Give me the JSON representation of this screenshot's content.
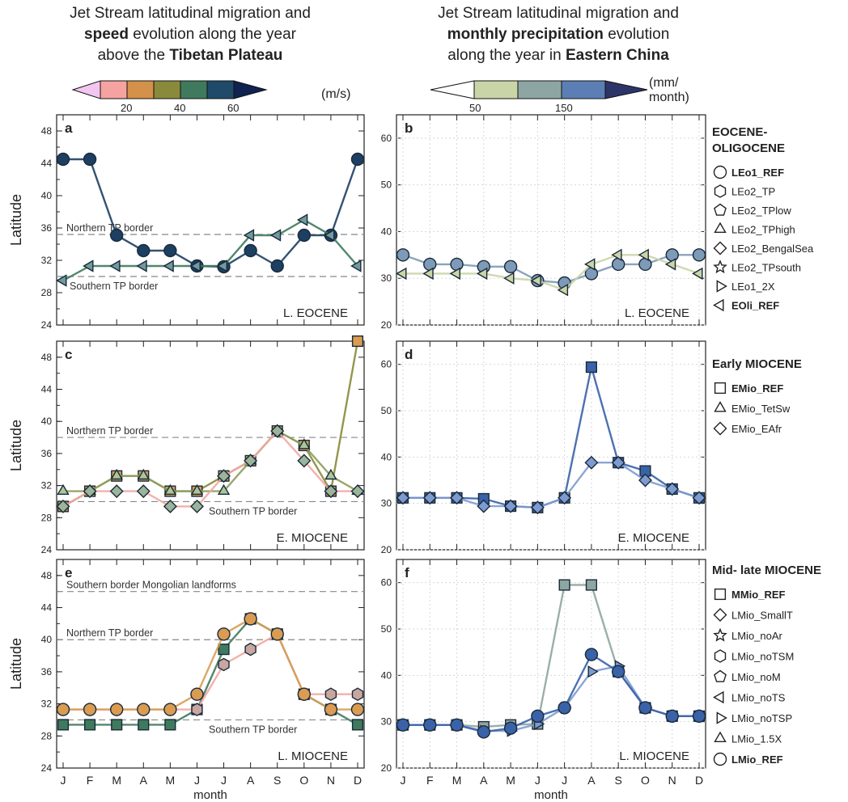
{
  "header_left": {
    "line1": "Jet Stream latitudinal migration and",
    "line2_bold": "speed",
    "line2_rest": " evolution along the year",
    "line3_pre": "above the ",
    "line3_bold": "Tibetan Plateau"
  },
  "header_right": {
    "line1": "Jet Stream latitudinal migration and",
    "line2_bold": "monthly precipitation",
    "line2_rest": " evolution",
    "line3_pre": "along the year in ",
    "line3_bold": "Eastern China"
  },
  "colorbar_speed": {
    "ticks": [
      "20",
      "40",
      "60"
    ],
    "unit": "(m/s)",
    "colors": [
      "#f3c6ef",
      "#f5a3a0",
      "#d4914a",
      "#8a8a3c",
      "#3f7a5e",
      "#1f4a6a",
      "#0f2250"
    ]
  },
  "colorbar_precip": {
    "ticks": [
      "50",
      "150"
    ],
    "unit_line1": "(mm/",
    "unit_line2": "month)",
    "colors": [
      "#ffffff",
      "#c9d5a6",
      "#8ea6a3",
      "#5b7fb4",
      "#2d3468"
    ]
  },
  "axes": {
    "xlabel": "month",
    "ylabel": "Latitude",
    "months": [
      "J",
      "F",
      "M",
      "A",
      "M",
      "J",
      "J",
      "A",
      "S",
      "O",
      "N",
      "D"
    ],
    "left_yticks": [
      "24",
      "28",
      "32",
      "36",
      "40",
      "44",
      "48"
    ],
    "right_yticks": [
      "20",
      "30",
      "40",
      "50",
      "60"
    ]
  },
  "colors": {
    "blue": "#3a62a8",
    "light_blue": "#7d9bd0",
    "green": "#8c9f5c",
    "olive": "#8a8a3c",
    "orange": "#d99c52",
    "pink": "#f2a7a3",
    "teal": "#3f7a5e",
    "navy": "#1c3f62",
    "gray": "#9a9a9a"
  },
  "chart_data": [
    {
      "type": "line",
      "panel": "a",
      "panel_label": "a",
      "era": "L. EOCENE",
      "ylim": [
        24,
        50
      ],
      "hlines": [
        {
          "y": 35.2,
          "label": "Northern TP border"
        },
        {
          "y": 30.0,
          "label": "Southern TP border"
        }
      ],
      "series": [
        {
          "name": "LEo1_REF",
          "marker": "circle",
          "values": [
            44.5,
            44.5,
            35.1,
            33.2,
            33.2,
            31.3,
            31.2,
            33.2,
            31.3,
            35.1,
            35.1,
            44.5
          ]
        },
        {
          "name": "EOli_REF",
          "marker": "tri-left",
          "values": [
            29.5,
            31.3,
            31.3,
            31.3,
            31.3,
            31.3,
            31.3,
            35.1,
            35.1,
            37.0,
            35.1,
            31.3
          ]
        }
      ]
    },
    {
      "type": "line",
      "panel": "b",
      "panel_label": "b",
      "era": "L. EOCENE",
      "ylim": [
        20,
        65
      ],
      "series": [
        {
          "name": "LEo1_REF",
          "marker": "circle",
          "values": [
            35,
            33,
            33,
            32.5,
            32.5,
            29.5,
            29,
            31,
            33,
            33,
            35,
            35
          ]
        },
        {
          "name": "EOli_REF",
          "marker": "tri-left",
          "values": [
            31,
            31,
            31,
            31,
            30,
            29.5,
            27.5,
            33,
            35,
            35,
            33,
            31
          ]
        }
      ]
    },
    {
      "type": "line",
      "panel": "c",
      "panel_label": "c",
      "era": "E. MIOCENE",
      "ylim": [
        24,
        50
      ],
      "hlines": [
        {
          "y": 38.0,
          "label": "Northern TP border"
        },
        {
          "y": 30.0,
          "label": "Southern TP border"
        }
      ],
      "series": [
        {
          "name": "EMio_REF",
          "marker": "square",
          "values": [
            29.4,
            31.3,
            33.2,
            33.2,
            31.3,
            31.3,
            33.2,
            35.1,
            38.8,
            37.0,
            31.3,
            51.0
          ]
        },
        {
          "name": "EMio_TetSw",
          "marker": "triangle",
          "values": [
            31.3,
            31.3,
            33.2,
            33.2,
            31.3,
            31.3,
            31.3,
            35.1,
            38.8,
            37.0,
            33.2,
            31.3
          ]
        },
        {
          "name": "EMio_EAfr",
          "marker": "diamond",
          "values": [
            29.4,
            31.3,
            31.3,
            31.3,
            29.4,
            29.4,
            33.2,
            35.1,
            38.8,
            35.1,
            31.3,
            31.3
          ]
        }
      ]
    },
    {
      "type": "line",
      "panel": "d",
      "panel_label": "d",
      "era": "E. MIOCENE",
      "ylim": [
        20,
        65
      ],
      "series": [
        {
          "name": "EMio_REF",
          "marker": "square",
          "values": [
            31.2,
            31.2,
            31.2,
            31,
            29.4,
            29.1,
            31.2,
            59.4,
            38.8,
            37,
            33.1,
            31.2
          ]
        },
        {
          "name": "EMio_EAfr",
          "marker": "diamond",
          "values": [
            31.2,
            31.2,
            31.2,
            29.4,
            29.4,
            29.1,
            31.2,
            38.8,
            38.8,
            35,
            33.1,
            31.2
          ]
        }
      ]
    },
    {
      "type": "line",
      "panel": "e",
      "panel_label": "e",
      "era": "L. MIOCENE",
      "ylim": [
        24,
        50
      ],
      "hlines": [
        {
          "y": 46.0,
          "label": "Southern border Mongolian landforms"
        },
        {
          "y": 40.0,
          "label": "Northern TP border"
        },
        {
          "y": 30.0,
          "label": "Southern TP border"
        }
      ],
      "series": [
        {
          "name": "MMio_REF",
          "marker": "square",
          "values": [
            29.4,
            29.4,
            29.4,
            29.4,
            29.4,
            31.3,
            38.8,
            42.6,
            40.7,
            33.2,
            31.3,
            29.4
          ]
        },
        {
          "name": "LMio_noTSM",
          "marker": "hexagon",
          "values": [
            31.3,
            31.3,
            31.3,
            31.3,
            31.3,
            31.3,
            36.9,
            38.8,
            40.7,
            33.2,
            33.2,
            33.2
          ]
        },
        {
          "name": "LMio_REF",
          "marker": "circle",
          "values": [
            31.3,
            31.3,
            31.3,
            31.3,
            31.3,
            33.2,
            40.7,
            42.6,
            40.7,
            33.2,
            31.3,
            31.3
          ]
        }
      ]
    },
    {
      "type": "line",
      "panel": "f",
      "panel_label": "f",
      "era": "L. MIOCENE",
      "ylim": [
        20,
        65
      ],
      "series": [
        {
          "name": "MMio_REF",
          "marker": "square",
          "values": [
            29.3,
            29.3,
            29.3,
            28.9,
            29.3,
            29.5,
            59.5,
            59.5,
            40.8,
            33,
            31.2,
            31.2
          ]
        },
        {
          "name": "LMio_noTSP",
          "marker": "tri-right",
          "values": [
            29.3,
            29.3,
            29.3,
            28,
            28,
            29.5,
            33,
            40.8,
            42,
            33,
            31.2,
            31.2
          ]
        },
        {
          "name": "LMio_REF",
          "marker": "circle",
          "values": [
            29.3,
            29.3,
            29.3,
            27.8,
            28.6,
            31.2,
            33,
            44.5,
            40.8,
            33,
            31.2,
            31.2
          ]
        }
      ]
    }
  ],
  "legend_b": {
    "title_line1": "EOCENE-",
    "title_line2": "OLIGOCENE",
    "items": [
      {
        "marker": "circle",
        "label": "LEo1_REF",
        "bold": true
      },
      {
        "marker": "hexagon",
        "label": "LEo2_TP",
        "bold": false
      },
      {
        "marker": "pentagon",
        "label": "LEo2_TPlow",
        "bold": false
      },
      {
        "marker": "triangle",
        "label": "LEo2_TPhigh",
        "bold": false
      },
      {
        "marker": "diamond",
        "label": "LEo2_BengalSea",
        "bold": false
      },
      {
        "marker": "star",
        "label": "LEo2_TPsouth",
        "bold": false
      },
      {
        "marker": "tri-right",
        "label": "LEo1_2X",
        "bold": false
      },
      {
        "marker": "tri-left",
        "label": "EOli_REF",
        "bold": true
      }
    ]
  },
  "legend_d": {
    "title": "Early MIOCENE",
    "items": [
      {
        "marker": "square",
        "label": "EMio_REF",
        "bold": true
      },
      {
        "marker": "triangle",
        "label": "EMio_TetSw",
        "bold": false
      },
      {
        "marker": "diamond",
        "label": "EMio_EAfr",
        "bold": false
      }
    ]
  },
  "legend_f": {
    "title": "Mid- late MIOCENE",
    "items": [
      {
        "marker": "square",
        "label": "MMio_REF",
        "bold": true
      },
      {
        "marker": "diamond",
        "label": "LMio_SmallT",
        "bold": false
      },
      {
        "marker": "star",
        "label": "LMio_noAr",
        "bold": false
      },
      {
        "marker": "hexagon",
        "label": "LMio_noTSM",
        "bold": false
      },
      {
        "marker": "pentagon",
        "label": "LMio_noM",
        "bold": false
      },
      {
        "marker": "tri-left",
        "label": "LMio_noTS",
        "bold": false
      },
      {
        "marker": "tri-right",
        "label": "LMio_noTSP",
        "bold": false
      },
      {
        "marker": "triangle",
        "label": "LMio_1.5X",
        "bold": false
      },
      {
        "marker": "circle",
        "label": "LMio_REF",
        "bold": true
      }
    ]
  }
}
